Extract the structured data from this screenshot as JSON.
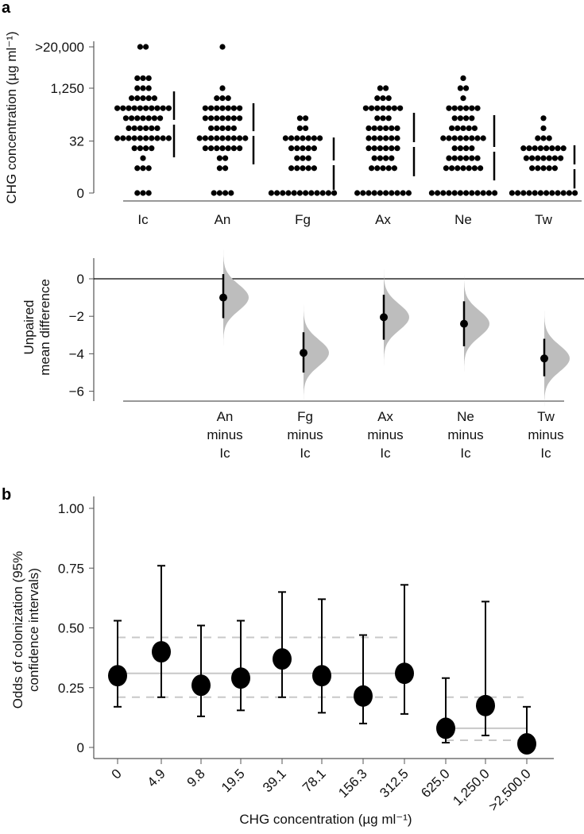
{
  "chart_data": [
    {
      "panel": "a",
      "type": "scatter",
      "subtype": "swarm",
      "ylabel": "CHG concentration (µg ml⁻¹)",
      "yscale": "log2",
      "ytick_labels": [
        "0",
        "32",
        "1,250",
        ">20,000"
      ],
      "ytick_values": [
        0,
        32,
        1250,
        20000
      ],
      "categories": [
        "Ic",
        "An",
        "Fg",
        "Ax",
        "Ne",
        "Tw"
      ],
      "levels": [
        0,
        4.9,
        9.8,
        19.5,
        39.1,
        78.1,
        156.3,
        312.5,
        625,
        1250,
        2500,
        20000
      ],
      "series": [
        {
          "category": "Ic",
          "counts": [
            3,
            3,
            1,
            4,
            10,
            6,
            7,
            10,
            5,
            3,
            3,
            2
          ],
          "mean": 118,
          "sd_range": [
            10.4,
            1000
          ]
        },
        {
          "category": "An",
          "counts": [
            4,
            2,
            2,
            7,
            9,
            5,
            7,
            7,
            3,
            1,
            0,
            1
          ],
          "mean": 54,
          "sd_range": [
            6.4,
            440
          ]
        },
        {
          "category": "Fg",
          "counts": [
            12,
            5,
            3,
            5,
            7,
            2,
            2,
            0,
            0,
            0,
            0,
            0
          ],
          "mean": 7.1,
          "sd_range": [
            1.1,
            41
          ]
        },
        {
          "category": "Ax",
          "counts": [
            10,
            5,
            4,
            6,
            6,
            6,
            3,
            7,
            3,
            2,
            0,
            0
          ],
          "mean": 25.2,
          "sd_range": [
            2.8,
            227
          ]
        },
        {
          "category": "Ne",
          "counts": [
            12,
            7,
            6,
            4,
            8,
            5,
            4,
            6,
            1,
            2,
            1,
            0
          ],
          "mean": 18.1,
          "sd_range": [
            2.1,
            193
          ]
        },
        {
          "category": "Tw",
          "counts": [
            12,
            5,
            7,
            8,
            3,
            1,
            1,
            0,
            0,
            0,
            0,
            0
          ],
          "mean": 5.4,
          "sd_range": [
            1.2,
            24
          ]
        }
      ]
    },
    {
      "panel": "a-lower",
      "type": "scatter",
      "subtype": "estimation-plot",
      "ylabel_lines": [
        "Unpaired",
        "mean difference"
      ],
      "ylim": [
        -6,
        0
      ],
      "yticks": [
        0,
        -2,
        -4,
        -6
      ],
      "ytick_labels": [
        "0",
        "−2",
        "−4",
        "−6"
      ],
      "categories": [
        [
          "An",
          "minus",
          "Ic"
        ],
        [
          "Fg",
          "minus",
          "Ic"
        ],
        [
          "Ax",
          "minus",
          "Ic"
        ],
        [
          "Ne",
          "minus",
          "Ic"
        ],
        [
          "Tw",
          "minus",
          "Ic"
        ]
      ],
      "mean_diff": [
        -1.0,
        -3.95,
        -2.05,
        -2.4,
        -4.25
      ],
      "ci_low": [
        -2.1,
        -5.0,
        -3.25,
        -3.6,
        -5.2
      ],
      "ci_high": [
        0.25,
        -2.85,
        -0.85,
        -1.2,
        -3.2
      ],
      "distribution_color": "#bdbdbd"
    },
    {
      "panel": "b",
      "type": "scatter",
      "subtype": "point-errorbar",
      "ylabel_lines": [
        "Odds of colonization (95%",
        "confidence intervals)"
      ],
      "xlabel": "CHG concentration (µg ml⁻¹)",
      "ylim": [
        0,
        1
      ],
      "yticks": [
        0,
        0.25,
        0.5,
        0.75,
        1.0
      ],
      "ytick_labels": [
        "0",
        "0.25",
        "0.50",
        "0.75",
        "1.00"
      ],
      "categories": [
        "0",
        "4.9",
        "9.8",
        "19.5",
        "39.1",
        "78.1",
        "156.3",
        "312.5",
        "625.0",
        "1,250.0",
        ">2,500.0"
      ],
      "values": [
        0.3,
        0.4,
        0.26,
        0.29,
        0.37,
        0.3,
        0.215,
        0.31,
        0.08,
        0.175,
        0.015
      ],
      "ci_low": [
        0.17,
        0.21,
        0.13,
        0.155,
        0.21,
        0.145,
        0.1,
        0.14,
        0.02,
        0.05,
        0.0
      ],
      "ci_high": [
        0.53,
        0.76,
        0.51,
        0.53,
        0.65,
        0.62,
        0.47,
        0.68,
        0.29,
        0.61,
        0.17
      ],
      "group_lines": [
        {
          "from": "0",
          "to": "312.5",
          "estimate": 0.31,
          "ci": [
            0.21,
            0.46
          ]
        },
        {
          "from": "625.0",
          "to": ">2,500.0",
          "estimate": 0.08,
          "ci": [
            0.03,
            0.21
          ]
        }
      ],
      "reference_line_color": "#c8c8c8"
    }
  ],
  "panel_letters": {
    "a": "a",
    "b": "b"
  }
}
